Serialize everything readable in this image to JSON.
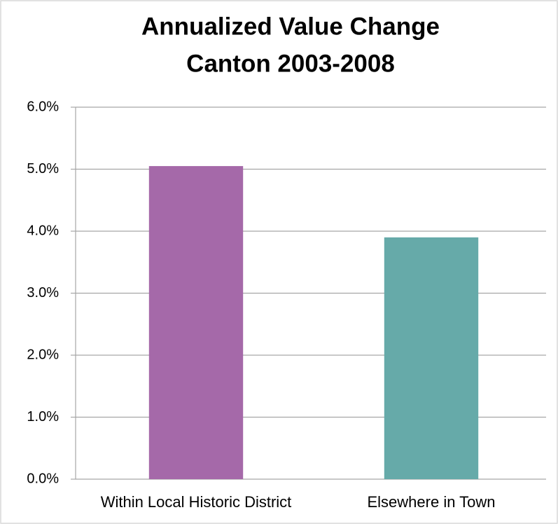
{
  "chart_data": {
    "type": "bar",
    "title": "Annualized Value Change",
    "subtitle": "Canton 2003-2008",
    "categories": [
      "Within Local Historic District",
      "Elsewhere in Town"
    ],
    "values": [
      5.05,
      3.9
    ],
    "colors": [
      "#a569a9",
      "#66aaa9"
    ],
    "ylim": [
      0,
      6
    ],
    "yticks": [
      {
        "value": 0,
        "label": "0.0%"
      },
      {
        "value": 1,
        "label": "1.0%"
      },
      {
        "value": 2,
        "label": "2.0%"
      },
      {
        "value": 3,
        "label": "3.0%"
      },
      {
        "value": 4,
        "label": "4.0%"
      },
      {
        "value": 5,
        "label": "5.0%"
      },
      {
        "value": 6,
        "label": "6.0%"
      }
    ],
    "grid": true
  }
}
